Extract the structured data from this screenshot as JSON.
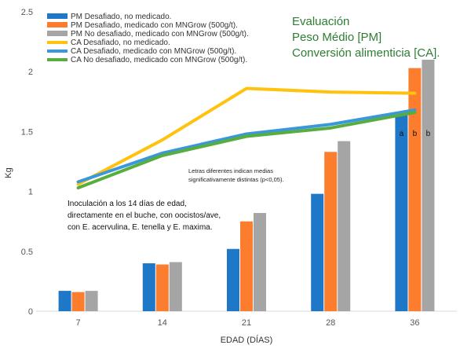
{
  "chart_data": {
    "type": "bar",
    "title_lines": [
      "Evaluación",
      "Peso Médio [PM]",
      "Conversión alimenticia [CA]."
    ],
    "xlabel": "EDAD (DÍAS)",
    "ylabel": "Kg",
    "ylim": [
      0,
      2.5
    ],
    "yticks": [
      "0",
      "0.5",
      "1",
      "1.5",
      "2",
      "2.5"
    ],
    "categories": [
      "7",
      "14",
      "21",
      "28",
      "36"
    ],
    "bar_series": [
      {
        "name": "PM Desafiado, no medicado.",
        "color": "#1f77c8",
        "values": [
          0.17,
          0.4,
          0.52,
          0.98,
          1.64
        ]
      },
      {
        "name": "PM Desafiado, medicado con MNGrow (500g/t).",
        "color": "#fb7d2d",
        "values": [
          0.16,
          0.39,
          0.75,
          1.33,
          2.03
        ]
      },
      {
        "name": "PM No desafiado, medicado con MNGrow (500g/t).",
        "color": "#a5a5a5",
        "values": [
          0.17,
          0.41,
          0.82,
          1.42,
          2.1
        ]
      }
    ],
    "line_series": [
      {
        "name": "CA Desafiado, no medicado.",
        "color": "#ffc20e",
        "values": [
          1.06,
          1.43,
          1.86,
          1.83,
          1.82
        ]
      },
      {
        "name": "CA Desafiado, medicado con MNGrow (500g/t).",
        "color": "#3a97db",
        "values": [
          1.08,
          1.32,
          1.48,
          1.56,
          1.68
        ]
      },
      {
        "name": "CA No desafiado, medicado con MNGrow (500g/t).",
        "color": "#58ad3f",
        "values": [
          1.03,
          1.3,
          1.46,
          1.53,
          1.66
        ]
      }
    ],
    "significance_labels": [
      "a",
      "b",
      "b"
    ],
    "significance_note": [
      "Letras diferentes indican medias",
      "significativamente distintas (p<0,05)."
    ],
    "annotation_lines": [
      "Inoculación a los 14 días de edad,",
      "directamente en el buche, con oocistos/ave,",
      "con E. acervulina, E. tenella y E. maxima."
    ],
    "legend_placement": "top-left",
    "grid": false
  }
}
